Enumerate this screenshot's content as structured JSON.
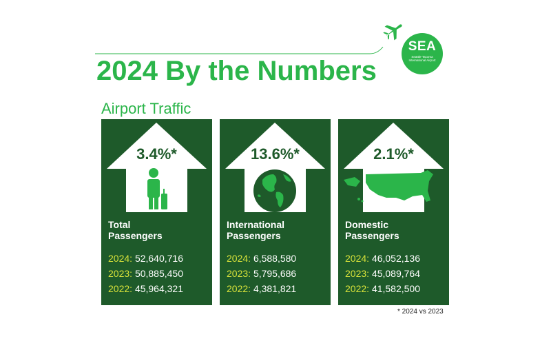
{
  "header": {
    "title": "2024 By the Numbers",
    "subtitle": "Airport Traffic"
  },
  "logo": {
    "code": "SEA",
    "name": "Seattle-Tacoma International Airport"
  },
  "colors": {
    "brand_green": "#2bb54a",
    "card_green": "#1e5a2a",
    "year_yellow": "#d8e23a"
  },
  "cards": [
    {
      "icon": "traveler-icon",
      "change": "3.4%*",
      "label_line1": "Total",
      "label_line2": "Passengers",
      "rows": [
        {
          "year": "2024:",
          "value": "52,640,716"
        },
        {
          "year": "2023:",
          "value": "50,885,450"
        },
        {
          "year": "2022:",
          "value": "45,964,321"
        }
      ]
    },
    {
      "icon": "globe-icon",
      "change": "13.6%*",
      "label_line1": "International",
      "label_line2": "Passengers",
      "rows": [
        {
          "year": "2024:",
          "value": "6,588,580"
        },
        {
          "year": "2023:",
          "value": "5,795,686"
        },
        {
          "year": "2022:",
          "value": "4,381,821"
        }
      ]
    },
    {
      "icon": "usa-map-icon",
      "change": "2.1%*",
      "label_line1": "Domestic",
      "label_line2": "Passengers",
      "rows": [
        {
          "year": "2024:",
          "value": "46,052,136"
        },
        {
          "year": "2023:",
          "value": "45,089,764"
        },
        {
          "year": "2022:",
          "value": "41,582,500"
        }
      ]
    }
  ],
  "footnote": "* 2024 vs 2023"
}
